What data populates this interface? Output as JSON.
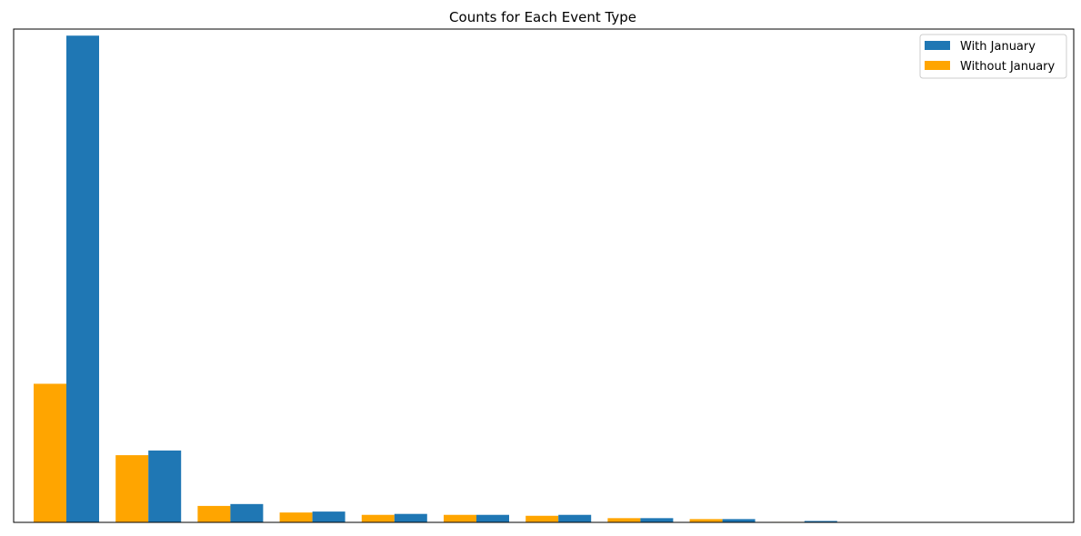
{
  "chart_data": {
    "type": "bar",
    "title": "Counts for Each Event Type",
    "xlabel": "",
    "ylabel": "",
    "ylim": [
      0,
      1050
    ],
    "categories": [
      "",
      "",
      "",
      "",
      "",
      "",
      "",
      "",
      "",
      "",
      "",
      ""
    ],
    "series": [
      {
        "name": "Without January",
        "color": "#ffa500",
        "values": [
          295,
          143,
          35,
          21,
          16,
          16,
          14,
          9,
          7,
          1,
          0,
          0
        ]
      },
      {
        "name": "With January",
        "color": "#1f77b4",
        "values": [
          1036,
          153,
          39,
          23,
          18,
          16,
          16,
          9,
          7,
          3,
          0,
          0
        ]
      }
    ],
    "legend": {
      "position": "top-right",
      "items": [
        "With January",
        "Without January"
      ]
    },
    "grid": false
  }
}
